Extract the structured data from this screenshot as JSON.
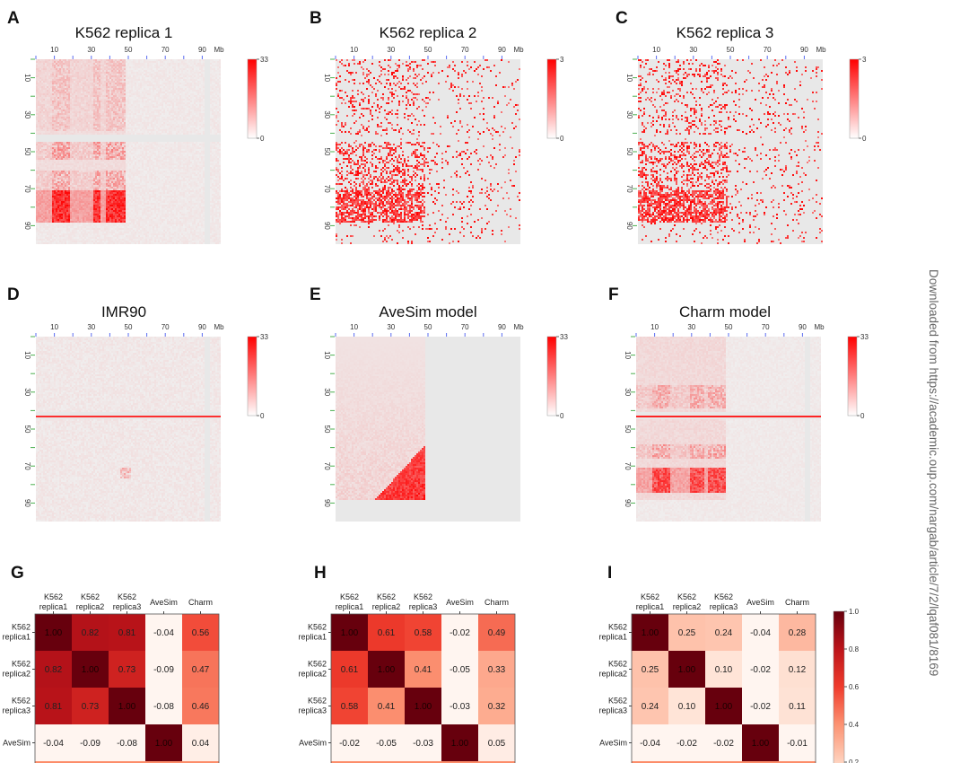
{
  "watermark": "Downloaded from https://academic.oup.com/nargab/article/7/2/lqaf081/8169",
  "chart_data": [
    {
      "type": "heatmap",
      "panel": "A",
      "title": "K562 replica 1",
      "x_ticks": [
        "10",
        "30",
        "50",
        "70",
        "90"
      ],
      "x_unit": "Mb",
      "y_ticks": [
        "10",
        "30",
        "50",
        "70",
        "90"
      ],
      "colorbar": {
        "min": 0,
        "max": 33,
        "min_label": "0",
        "max_label": "33"
      },
      "pattern": "replica1"
    },
    {
      "type": "heatmap",
      "panel": "B",
      "title": "K562 replica 2",
      "x_ticks": [
        "10",
        "30",
        "50",
        "70",
        "90"
      ],
      "x_unit": "Mb",
      "y_ticks": [
        "10",
        "30",
        "50",
        "70",
        "90"
      ],
      "colorbar": {
        "min": 0,
        "max": 3,
        "min_label": "0",
        "max_label": "3"
      },
      "pattern": "replica"
    },
    {
      "type": "heatmap",
      "panel": "C",
      "title": "K562 replica 3",
      "x_ticks": [
        "10",
        "30",
        "50",
        "70",
        "90"
      ],
      "x_unit": "Mb",
      "y_ticks": [
        "10",
        "30",
        "50",
        "70",
        "90"
      ],
      "colorbar": {
        "min": 0,
        "max": 3,
        "min_label": "0",
        "max_label": "3"
      },
      "pattern": "replica"
    },
    {
      "type": "heatmap",
      "panel": "D",
      "title": "IMR90",
      "x_ticks": [
        "10",
        "30",
        "50",
        "70",
        "90"
      ],
      "x_unit": "Mb",
      "y_ticks": [
        "10",
        "30",
        "50",
        "70",
        "90"
      ],
      "colorbar": {
        "min": 0,
        "max": 33,
        "min_label": "0",
        "max_label": "33"
      },
      "pattern": "imr90"
    },
    {
      "type": "heatmap",
      "panel": "E",
      "title": "AveSim model",
      "x_ticks": [
        "10",
        "30",
        "50",
        "70",
        "90"
      ],
      "x_unit": "Mb",
      "y_ticks": [
        "10",
        "30",
        "50",
        "70",
        "90"
      ],
      "colorbar": {
        "min": 0,
        "max": 33,
        "min_label": "0",
        "max_label": "33"
      },
      "pattern": "avesim"
    },
    {
      "type": "heatmap",
      "panel": "F",
      "title": "Charm model",
      "x_ticks": [
        "10",
        "30",
        "50",
        "70",
        "90"
      ],
      "x_unit": "Mb",
      "y_ticks": [
        "10",
        "30",
        "50",
        "70",
        "90"
      ],
      "colorbar": {
        "min": 0,
        "max": 33,
        "min_label": "0",
        "max_label": "33"
      },
      "pattern": "charm"
    },
    {
      "type": "heatmap",
      "panel": "G",
      "col_labels": [
        [
          "K562",
          "replica1"
        ],
        [
          "K562",
          "replica2"
        ],
        [
          "K562",
          "replica3"
        ],
        [
          "AveSim"
        ],
        [
          "Charm"
        ]
      ],
      "row_labels": [
        [
          "K562",
          "replica1"
        ],
        [
          "K562",
          "replica2"
        ],
        [
          "K562",
          "replica3"
        ],
        [
          "AveSim"
        ]
      ],
      "values": [
        [
          1.0,
          0.82,
          0.81,
          -0.04,
          0.56
        ],
        [
          0.82,
          1.0,
          0.73,
          -0.09,
          0.47
        ],
        [
          0.81,
          0.73,
          1.0,
          -0.08,
          0.46
        ],
        [
          -0.04,
          -0.09,
          -0.08,
          1.0,
          0.04
        ]
      ]
    },
    {
      "type": "heatmap",
      "panel": "H",
      "col_labels": [
        [
          "K562",
          "replica1"
        ],
        [
          "K562",
          "replica2"
        ],
        [
          "K562",
          "replica3"
        ],
        [
          "AveSim"
        ],
        [
          "Charm"
        ]
      ],
      "row_labels": [
        [
          "K562",
          "replica1"
        ],
        [
          "K562",
          "replica2"
        ],
        [
          "K562",
          "replica3"
        ],
        [
          "AveSim"
        ]
      ],
      "values": [
        [
          1.0,
          0.61,
          0.58,
          -0.02,
          0.49
        ],
        [
          0.61,
          1.0,
          0.41,
          -0.05,
          0.33
        ],
        [
          0.58,
          0.41,
          1.0,
          -0.03,
          0.32
        ],
        [
          -0.02,
          -0.05,
          -0.03,
          1.0,
          0.05
        ]
      ]
    },
    {
      "type": "heatmap",
      "panel": "I",
      "col_labels": [
        [
          "K562",
          "replica1"
        ],
        [
          "K562",
          "replica2"
        ],
        [
          "K562",
          "replica3"
        ],
        [
          "AveSim"
        ],
        [
          "Charm"
        ]
      ],
      "row_labels": [
        [
          "K562",
          "replica1"
        ],
        [
          "K562",
          "replica2"
        ],
        [
          "K562",
          "replica3"
        ],
        [
          "AveSim"
        ]
      ],
      "values": [
        [
          1.0,
          0.25,
          0.24,
          -0.04,
          0.28
        ],
        [
          0.25,
          1.0,
          0.1,
          -0.02,
          0.12
        ],
        [
          0.24,
          0.1,
          1.0,
          -0.02,
          0.11
        ],
        [
          -0.04,
          -0.02,
          -0.02,
          1.0,
          -0.01
        ]
      ],
      "colorbar": {
        "ticks": [
          "1.0",
          "0.8",
          "0.6",
          "0.4",
          "0.2"
        ],
        "tick_values": [
          1.0,
          0.8,
          0.6,
          0.4,
          0.2
        ]
      }
    }
  ]
}
